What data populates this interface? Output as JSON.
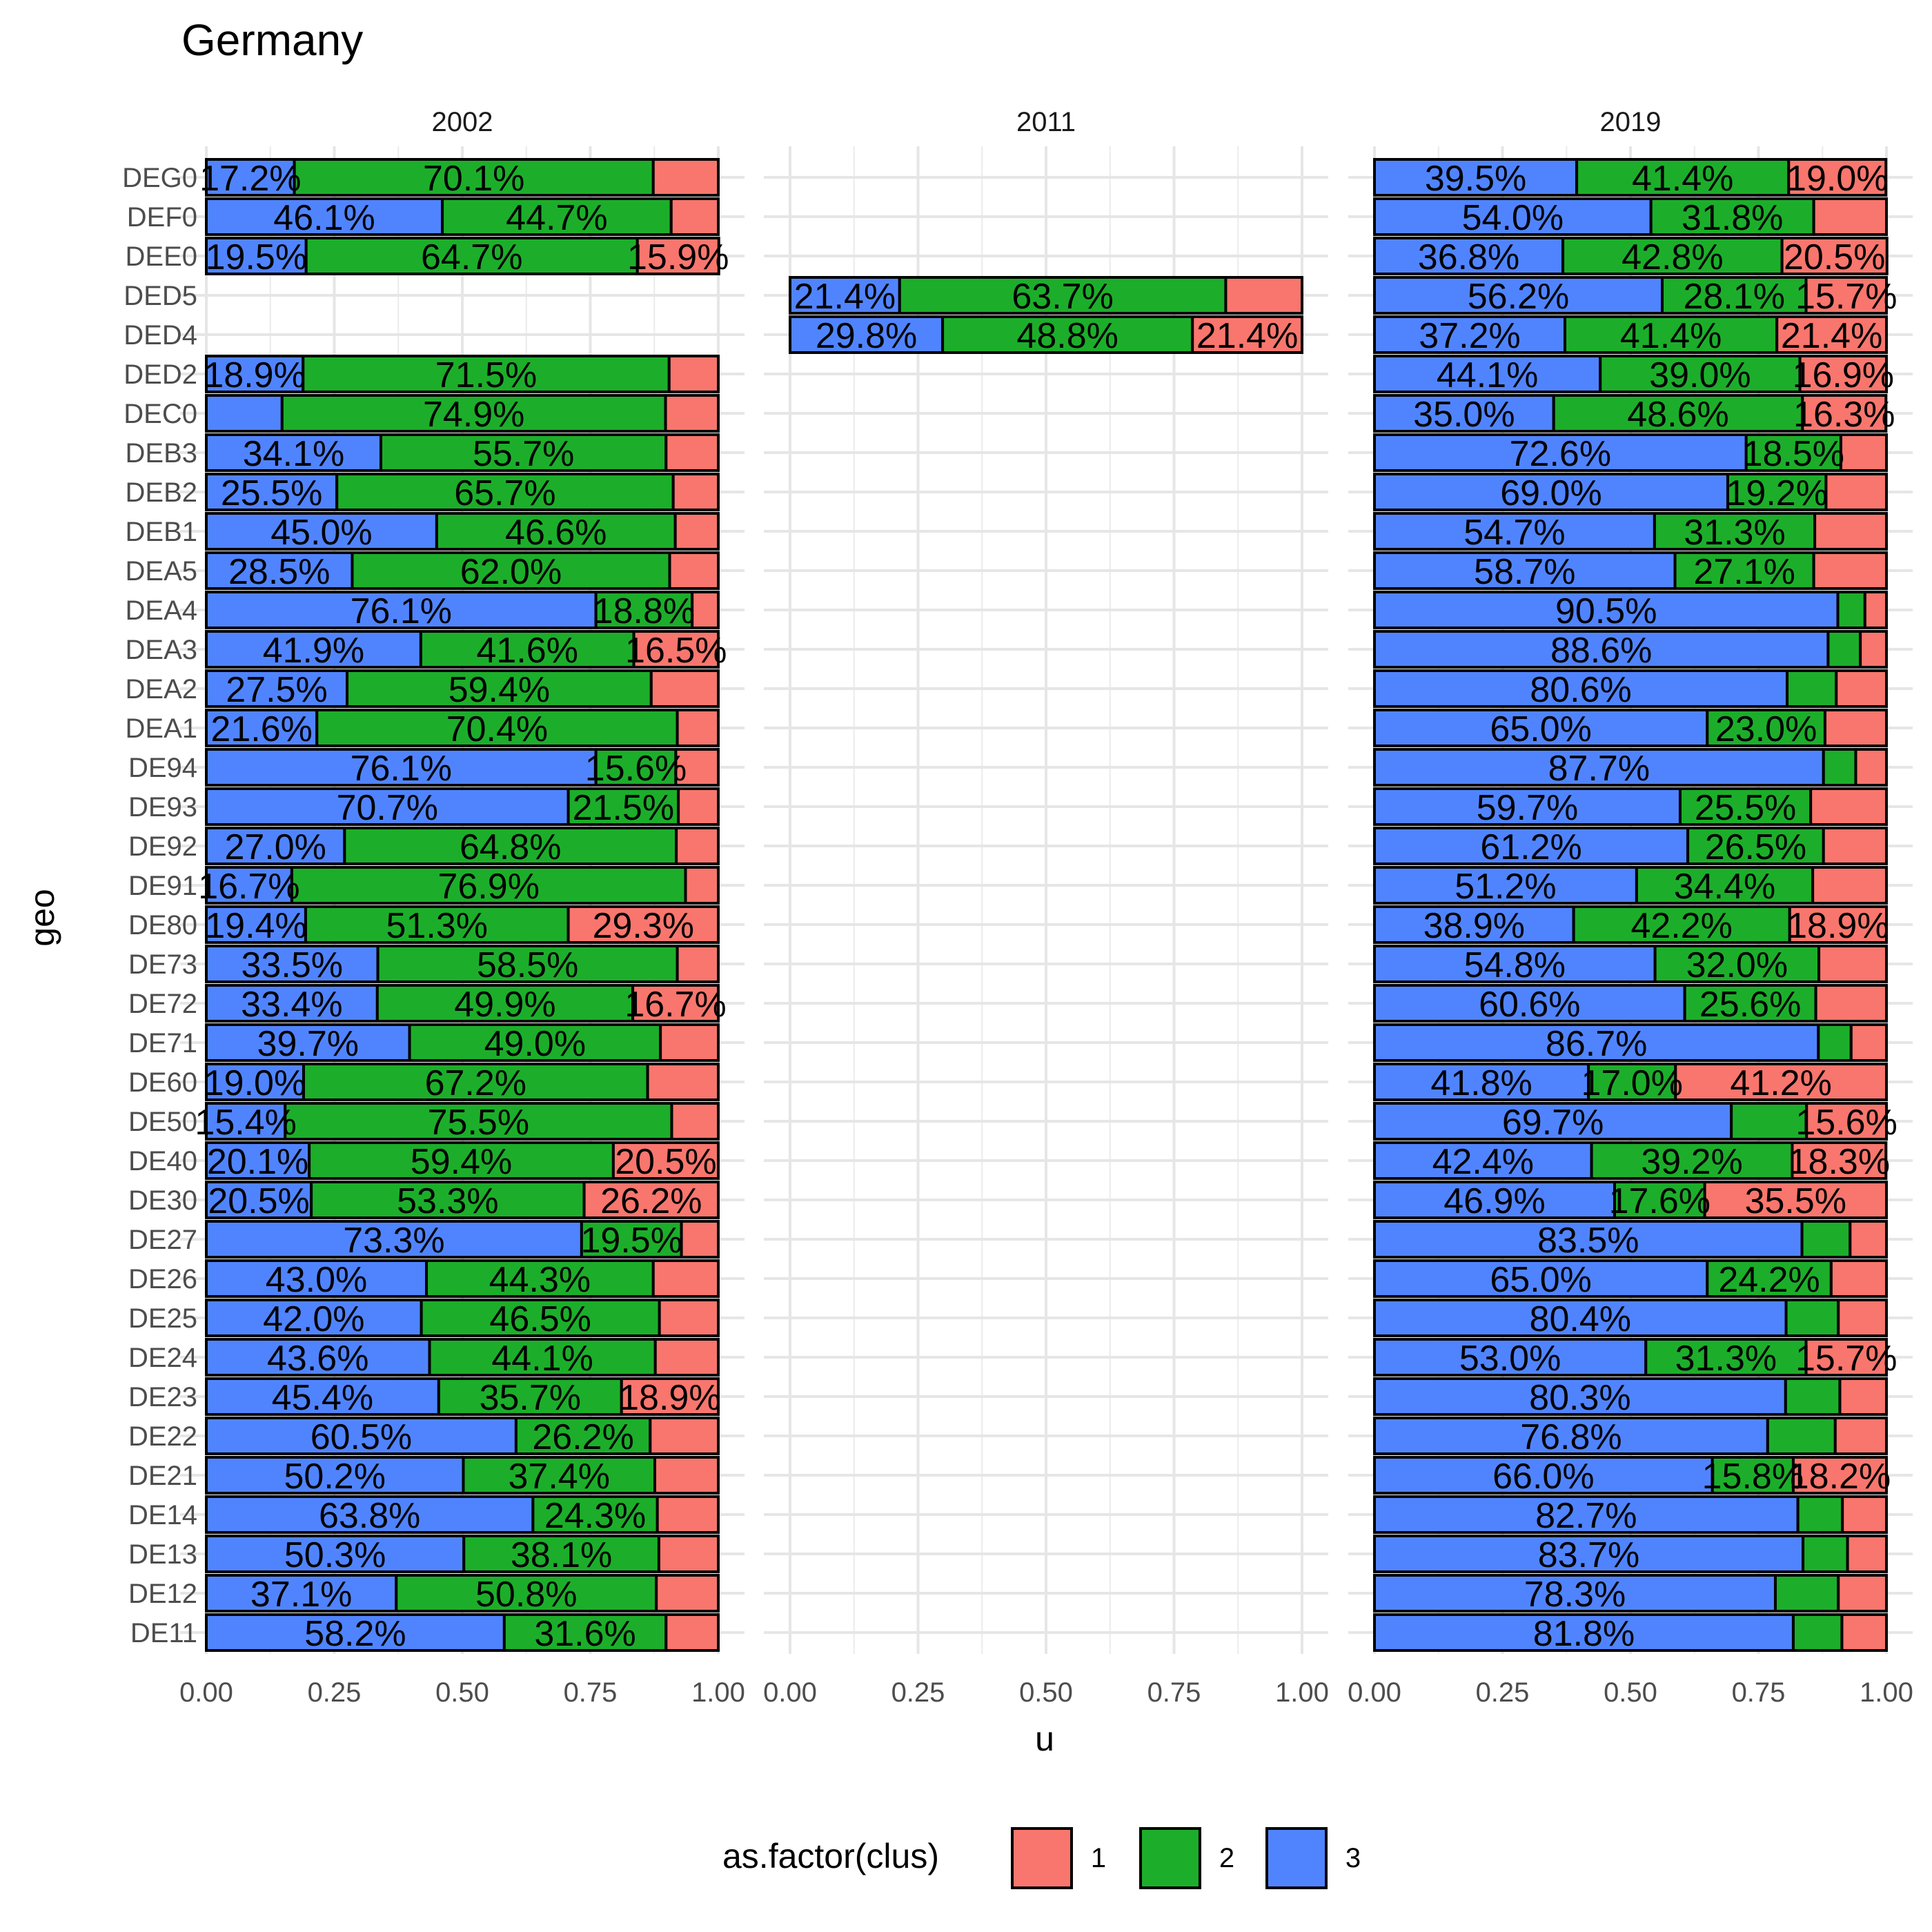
{
  "chart_data": {
    "type": "bar",
    "orientation": "horizontal",
    "stacked": true,
    "title": "Germany",
    "xlabel": "u",
    "ylabel": "geo",
    "xlim": [
      0,
      1
    ],
    "x_ticks": [
      "0.00",
      "0.25",
      "0.50",
      "0.75",
      "1.00"
    ],
    "grid": true,
    "legend": {
      "title": "as.factor(clus)",
      "position": "bottom",
      "entries": [
        {
          "key": "1",
          "color": "#F8766D"
        },
        {
          "key": "2",
          "color": "#1CAE2A"
        },
        {
          "key": "3",
          "color": "#5084FF"
        }
      ]
    },
    "stack_order": [
      "3",
      "2",
      "1"
    ],
    "categories": [
      "DEG0",
      "DEF0",
      "DEE0",
      "DED5",
      "DED4",
      "DED2",
      "DEC0",
      "DEB3",
      "DEB2",
      "DEB1",
      "DEA5",
      "DEA4",
      "DEA3",
      "DEA2",
      "DEA1",
      "DE94",
      "DE93",
      "DE92",
      "DE91",
      "DE80",
      "DE73",
      "DE72",
      "DE71",
      "DE60",
      "DE50",
      "DE40",
      "DE30",
      "DE27",
      "DE26",
      "DE25",
      "DE24",
      "DE23",
      "DE22",
      "DE21",
      "DE14",
      "DE13",
      "DE12",
      "DE11"
    ],
    "panels": [
      {
        "name": "2002",
        "bars": [
          {
            "geo": "DEG0",
            "c3": 0.172,
            "c2": 0.701,
            "c1": 0.127,
            "l3": "17.2%",
            "l2": "70.1%",
            "l1": ""
          },
          {
            "geo": "DEF0",
            "c3": 0.461,
            "c2": 0.447,
            "c1": 0.092,
            "l3": "46.1%",
            "l2": "44.7%",
            "l1": ""
          },
          {
            "geo": "DEE0",
            "c3": 0.195,
            "c2": 0.647,
            "c1": 0.159,
            "l3": "19.5%",
            "l2": "64.7%",
            "l1": "15.9%"
          },
          {
            "geo": "DED2",
            "c3": 0.189,
            "c2": 0.715,
            "c1": 0.096,
            "l3": "18.9%",
            "l2": "71.5%",
            "l1": ""
          },
          {
            "geo": "DEC0",
            "c3": 0.148,
            "c2": 0.749,
            "c1": 0.103,
            "l3": "",
            "l2": "74.9%",
            "l1": ""
          },
          {
            "geo": "DEB3",
            "c3": 0.341,
            "c2": 0.557,
            "c1": 0.102,
            "l3": "34.1%",
            "l2": "55.7%",
            "l1": ""
          },
          {
            "geo": "DEB2",
            "c3": 0.255,
            "c2": 0.657,
            "c1": 0.088,
            "l3": "25.5%",
            "l2": "65.7%",
            "l1": ""
          },
          {
            "geo": "DEB1",
            "c3": 0.45,
            "c2": 0.466,
            "c1": 0.084,
            "l3": "45.0%",
            "l2": "46.6%",
            "l1": ""
          },
          {
            "geo": "DEA5",
            "c3": 0.285,
            "c2": 0.62,
            "c1": 0.095,
            "l3": "28.5%",
            "l2": "62.0%",
            "l1": ""
          },
          {
            "geo": "DEA4",
            "c3": 0.761,
            "c2": 0.188,
            "c1": 0.051,
            "l3": "76.1%",
            "l2": "18.8%",
            "l1": ""
          },
          {
            "geo": "DEA3",
            "c3": 0.419,
            "c2": 0.416,
            "c1": 0.165,
            "l3": "41.9%",
            "l2": "41.6%",
            "l1": "16.5%"
          },
          {
            "geo": "DEA2",
            "c3": 0.275,
            "c2": 0.594,
            "c1": 0.131,
            "l3": "27.5%",
            "l2": "59.4%",
            "l1": ""
          },
          {
            "geo": "DEA1",
            "c3": 0.216,
            "c2": 0.704,
            "c1": 0.08,
            "l3": "21.6%",
            "l2": "70.4%",
            "l1": ""
          },
          {
            "geo": "DE94",
            "c3": 0.761,
            "c2": 0.156,
            "c1": 0.083,
            "l3": "76.1%",
            "l2": "15.6%",
            "l1": ""
          },
          {
            "geo": "DE93",
            "c3": 0.707,
            "c2": 0.215,
            "c1": 0.078,
            "l3": "70.7%",
            "l2": "21.5%",
            "l1": ""
          },
          {
            "geo": "DE92",
            "c3": 0.27,
            "c2": 0.648,
            "c1": 0.082,
            "l3": "27.0%",
            "l2": "64.8%",
            "l1": ""
          },
          {
            "geo": "DE91",
            "c3": 0.167,
            "c2": 0.769,
            "c1": 0.064,
            "l3": "16.7%",
            "l2": "76.9%",
            "l1": ""
          },
          {
            "geo": "DE80",
            "c3": 0.194,
            "c2": 0.513,
            "c1": 0.293,
            "l3": "19.4%",
            "l2": "51.3%",
            "l1": "29.3%"
          },
          {
            "geo": "DE73",
            "c3": 0.335,
            "c2": 0.585,
            "c1": 0.08,
            "l3": "33.5%",
            "l2": "58.5%",
            "l1": ""
          },
          {
            "geo": "DE72",
            "c3": 0.334,
            "c2": 0.499,
            "c1": 0.167,
            "l3": "33.4%",
            "l2": "49.9%",
            "l1": "16.7%"
          },
          {
            "geo": "DE71",
            "c3": 0.397,
            "c2": 0.49,
            "c1": 0.113,
            "l3": "39.7%",
            "l2": "49.0%",
            "l1": ""
          },
          {
            "geo": "DE60",
            "c3": 0.19,
            "c2": 0.672,
            "c1": 0.138,
            "l3": "19.0%",
            "l2": "67.2%",
            "l1": ""
          },
          {
            "geo": "DE50",
            "c3": 0.154,
            "c2": 0.755,
            "c1": 0.091,
            "l3": "15.4%",
            "l2": "75.5%",
            "l1": ""
          },
          {
            "geo": "DE40",
            "c3": 0.201,
            "c2": 0.594,
            "c1": 0.205,
            "l3": "20.1%",
            "l2": "59.4%",
            "l1": "20.5%"
          },
          {
            "geo": "DE30",
            "c3": 0.205,
            "c2": 0.533,
            "c1": 0.262,
            "l3": "20.5%",
            "l2": "53.3%",
            "l1": "26.2%"
          },
          {
            "geo": "DE27",
            "c3": 0.733,
            "c2": 0.195,
            "c1": 0.072,
            "l3": "73.3%",
            "l2": "19.5%",
            "l1": ""
          },
          {
            "geo": "DE26",
            "c3": 0.43,
            "c2": 0.443,
            "c1": 0.127,
            "l3": "43.0%",
            "l2": "44.3%",
            "l1": ""
          },
          {
            "geo": "DE25",
            "c3": 0.42,
            "c2": 0.465,
            "c1": 0.115,
            "l3": "42.0%",
            "l2": "46.5%",
            "l1": ""
          },
          {
            "geo": "DE24",
            "c3": 0.436,
            "c2": 0.441,
            "c1": 0.123,
            "l3": "43.6%",
            "l2": "44.1%",
            "l1": ""
          },
          {
            "geo": "DE23",
            "c3": 0.454,
            "c2": 0.357,
            "c1": 0.189,
            "l3": "45.4%",
            "l2": "35.7%",
            "l1": "18.9%"
          },
          {
            "geo": "DE22",
            "c3": 0.605,
            "c2": 0.262,
            "c1": 0.133,
            "l3": "60.5%",
            "l2": "26.2%",
            "l1": ""
          },
          {
            "geo": "DE21",
            "c3": 0.502,
            "c2": 0.374,
            "c1": 0.124,
            "l3": "50.2%",
            "l2": "37.4%",
            "l1": ""
          },
          {
            "geo": "DE14",
            "c3": 0.638,
            "c2": 0.243,
            "c1": 0.119,
            "l3": "63.8%",
            "l2": "24.3%",
            "l1": ""
          },
          {
            "geo": "DE13",
            "c3": 0.503,
            "c2": 0.381,
            "c1": 0.116,
            "l3": "50.3%",
            "l2": "38.1%",
            "l1": ""
          },
          {
            "geo": "DE12",
            "c3": 0.371,
            "c2": 0.508,
            "c1": 0.121,
            "l3": "37.1%",
            "l2": "50.8%",
            "l1": ""
          },
          {
            "geo": "DE11",
            "c3": 0.582,
            "c2": 0.316,
            "c1": 0.102,
            "l3": "58.2%",
            "l2": "31.6%",
            "l1": ""
          }
        ]
      },
      {
        "name": "2011",
        "bars": [
          {
            "geo": "DED5",
            "c3": 0.214,
            "c2": 0.637,
            "c1": 0.149,
            "l3": "21.4%",
            "l2": "63.7%",
            "l1": ""
          },
          {
            "geo": "DED4",
            "c3": 0.298,
            "c2": 0.488,
            "c1": 0.214,
            "l3": "29.8%",
            "l2": "48.8%",
            "l1": "21.4%"
          }
        ]
      },
      {
        "name": "2019",
        "bars": [
          {
            "geo": "DEG0",
            "c3": 0.395,
            "c2": 0.414,
            "c1": 0.19,
            "l3": "39.5%",
            "l2": "41.4%",
            "l1": "19.0%"
          },
          {
            "geo": "DEF0",
            "c3": 0.54,
            "c2": 0.318,
            "c1": 0.142,
            "l3": "54.0%",
            "l2": "31.8%",
            "l1": ""
          },
          {
            "geo": "DEE0",
            "c3": 0.368,
            "c2": 0.428,
            "c1": 0.205,
            "l3": "36.8%",
            "l2": "42.8%",
            "l1": "20.5%"
          },
          {
            "geo": "DED5",
            "c3": 0.562,
            "c2": 0.281,
            "c1": 0.157,
            "l3": "56.2%",
            "l2": "28.1%",
            "l1": "15.7%"
          },
          {
            "geo": "DED4",
            "c3": 0.372,
            "c2": 0.414,
            "c1": 0.214,
            "l3": "37.2%",
            "l2": "41.4%",
            "l1": "21.4%"
          },
          {
            "geo": "DED2",
            "c3": 0.441,
            "c2": 0.39,
            "c1": 0.169,
            "l3": "44.1%",
            "l2": "39.0%",
            "l1": "16.9%"
          },
          {
            "geo": "DEC0",
            "c3": 0.35,
            "c2": 0.486,
            "c1": 0.163,
            "l3": "35.0%",
            "l2": "48.6%",
            "l1": "16.3%"
          },
          {
            "geo": "DEB3",
            "c3": 0.726,
            "c2": 0.185,
            "c1": 0.089,
            "l3": "72.6%",
            "l2": "18.5%",
            "l1": ""
          },
          {
            "geo": "DEB2",
            "c3": 0.69,
            "c2": 0.192,
            "c1": 0.118,
            "l3": "69.0%",
            "l2": "19.2%",
            "l1": ""
          },
          {
            "geo": "DEB1",
            "c3": 0.547,
            "c2": 0.313,
            "c1": 0.14,
            "l3": "54.7%",
            "l2": "31.3%",
            "l1": ""
          },
          {
            "geo": "DEA5",
            "c3": 0.587,
            "c2": 0.271,
            "c1": 0.142,
            "l3": "58.7%",
            "l2": "27.1%",
            "l1": ""
          },
          {
            "geo": "DEA4",
            "c3": 0.905,
            "c2": 0.053,
            "c1": 0.042,
            "l3": "90.5%",
            "l2": "",
            "l1": ""
          },
          {
            "geo": "DEA3",
            "c3": 0.886,
            "c2": 0.063,
            "c1": 0.051,
            "l3": "88.6%",
            "l2": "",
            "l1": ""
          },
          {
            "geo": "DEA2",
            "c3": 0.806,
            "c2": 0.096,
            "c1": 0.098,
            "l3": "80.6%",
            "l2": "",
            "l1": ""
          },
          {
            "geo": "DEA1",
            "c3": 0.65,
            "c2": 0.23,
            "c1": 0.12,
            "l3": "65.0%",
            "l2": "23.0%",
            "l1": ""
          },
          {
            "geo": "DE94",
            "c3": 0.877,
            "c2": 0.063,
            "c1": 0.06,
            "l3": "87.7%",
            "l2": "",
            "l1": ""
          },
          {
            "geo": "DE93",
            "c3": 0.597,
            "c2": 0.255,
            "c1": 0.148,
            "l3": "59.7%",
            "l2": "25.5%",
            "l1": ""
          },
          {
            "geo": "DE92",
            "c3": 0.612,
            "c2": 0.265,
            "c1": 0.123,
            "l3": "61.2%",
            "l2": "26.5%",
            "l1": ""
          },
          {
            "geo": "DE91",
            "c3": 0.512,
            "c2": 0.344,
            "c1": 0.144,
            "l3": "51.2%",
            "l2": "34.4%",
            "l1": ""
          },
          {
            "geo": "DE80",
            "c3": 0.389,
            "c2": 0.422,
            "c1": 0.189,
            "l3": "38.9%",
            "l2": "42.2%",
            "l1": "18.9%"
          },
          {
            "geo": "DE73",
            "c3": 0.548,
            "c2": 0.32,
            "c1": 0.132,
            "l3": "54.8%",
            "l2": "32.0%",
            "l1": ""
          },
          {
            "geo": "DE72",
            "c3": 0.606,
            "c2": 0.256,
            "c1": 0.138,
            "l3": "60.6%",
            "l2": "25.6%",
            "l1": ""
          },
          {
            "geo": "DE71",
            "c3": 0.867,
            "c2": 0.064,
            "c1": 0.069,
            "l3": "86.7%",
            "l2": "",
            "l1": ""
          },
          {
            "geo": "DE60",
            "c3": 0.418,
            "c2": 0.17,
            "c1": 0.412,
            "l3": "41.8%",
            "l2": "17.0%",
            "l1": "41.2%"
          },
          {
            "geo": "DE50",
            "c3": 0.697,
            "c2": 0.147,
            "c1": 0.156,
            "l3": "69.7%",
            "l2": "",
            "l1": "15.6%"
          },
          {
            "geo": "DE40",
            "c3": 0.424,
            "c2": 0.392,
            "c1": 0.183,
            "l3": "42.4%",
            "l2": "39.2%",
            "l1": "18.3%"
          },
          {
            "geo": "DE30",
            "c3": 0.469,
            "c2": 0.176,
            "c1": 0.355,
            "l3": "46.9%",
            "l2": "17.6%",
            "l1": "35.5%"
          },
          {
            "geo": "DE27",
            "c3": 0.835,
            "c2": 0.094,
            "c1": 0.071,
            "l3": "83.5%",
            "l2": "",
            "l1": ""
          },
          {
            "geo": "DE26",
            "c3": 0.65,
            "c2": 0.242,
            "c1": 0.108,
            "l3": "65.0%",
            "l2": "24.2%",
            "l1": ""
          },
          {
            "geo": "DE25",
            "c3": 0.804,
            "c2": 0.102,
            "c1": 0.094,
            "l3": "80.4%",
            "l2": "",
            "l1": ""
          },
          {
            "geo": "DE24",
            "c3": 0.53,
            "c2": 0.313,
            "c1": 0.157,
            "l3": "53.0%",
            "l2": "31.3%",
            "l1": "15.7%"
          },
          {
            "geo": "DE23",
            "c3": 0.803,
            "c2": 0.106,
            "c1": 0.091,
            "l3": "80.3%",
            "l2": "",
            "l1": ""
          },
          {
            "geo": "DE22",
            "c3": 0.768,
            "c2": 0.132,
            "c1": 0.1,
            "l3": "76.8%",
            "l2": "",
            "l1": ""
          },
          {
            "geo": "DE21",
            "c3": 0.66,
            "c2": 0.158,
            "c1": 0.182,
            "l3": "66.0%",
            "l2": "15.8%",
            "l1": "18.2%"
          },
          {
            "geo": "DE14",
            "c3": 0.827,
            "c2": 0.087,
            "c1": 0.086,
            "l3": "82.7%",
            "l2": "",
            "l1": ""
          },
          {
            "geo": "DE13",
            "c3": 0.837,
            "c2": 0.087,
            "c1": 0.076,
            "l3": "83.7%",
            "l2": "",
            "l1": ""
          },
          {
            "geo": "DE12",
            "c3": 0.783,
            "c2": 0.123,
            "c1": 0.094,
            "l3": "78.3%",
            "l2": "",
            "l1": ""
          },
          {
            "geo": "DE11",
            "c3": 0.818,
            "c2": 0.095,
            "c1": 0.087,
            "l3": "81.8%",
            "l2": "",
            "l1": ""
          }
        ]
      }
    ]
  }
}
